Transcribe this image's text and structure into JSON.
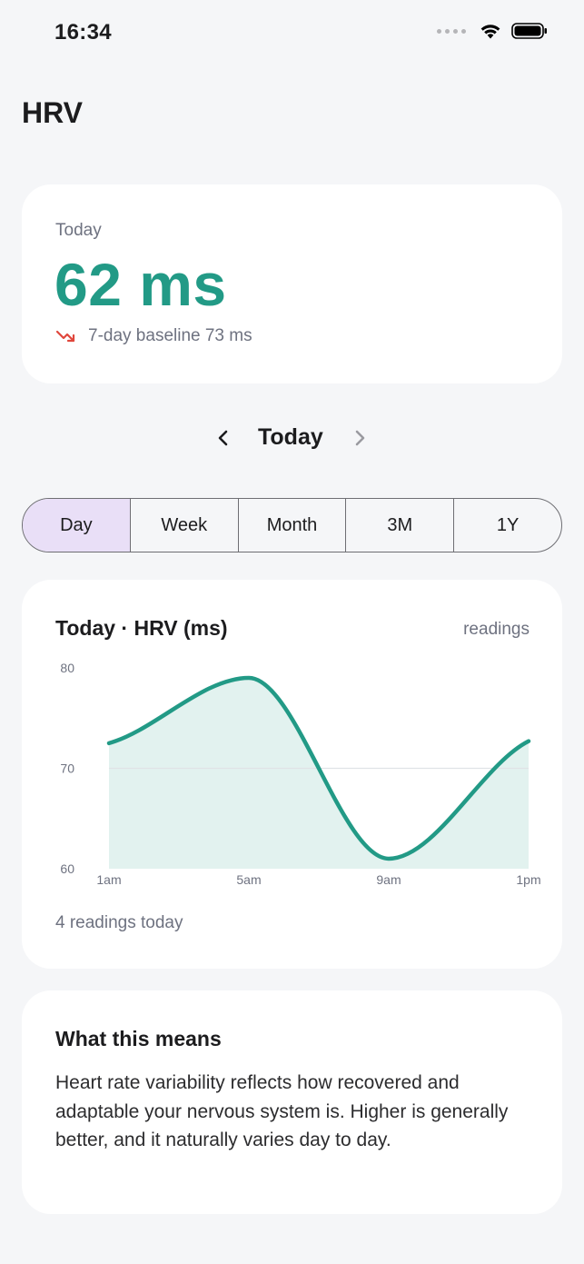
{
  "status_bar": {
    "time": "16:34"
  },
  "header": {
    "title": "HRV"
  },
  "summary": {
    "label": "Today",
    "value": "62 ms",
    "baseline_text": "7-day baseline 73 ms",
    "trend_icon": "trend-down-icon",
    "accent_color": "#229a86",
    "trend_color": "#e0473c"
  },
  "date_nav": {
    "label": "Today"
  },
  "segments": {
    "items": [
      {
        "label": "Day",
        "active": true
      },
      {
        "label": "Week",
        "active": false
      },
      {
        "label": "Month",
        "active": false
      },
      {
        "label": "3M",
        "active": false
      },
      {
        "label": "1Y",
        "active": false
      }
    ],
    "active_color": "#e9dff7"
  },
  "chart": {
    "title": "Today · HRV (ms)",
    "meta": "readings",
    "footer": "4 readings today"
  },
  "chart_data": {
    "type": "area",
    "title": "Today · HRV (ms)",
    "xlabel": "",
    "ylabel": "",
    "x": [
      "1am",
      "5am",
      "9am",
      "1pm"
    ],
    "series": [
      {
        "values": [
          72.5,
          79,
          61,
          72.7
        ]
      }
    ],
    "y_ticks": [
      60,
      70,
      80
    ],
    "ylim": [
      60,
      80
    ],
    "grid": true,
    "color": "#229a86",
    "fill_color": "#e2f2ef"
  },
  "info": {
    "title": "What this means",
    "body": "Heart rate variability reflects how recovered and adaptable your nervous system is. Higher is generally better, and it naturally varies day to day."
  }
}
